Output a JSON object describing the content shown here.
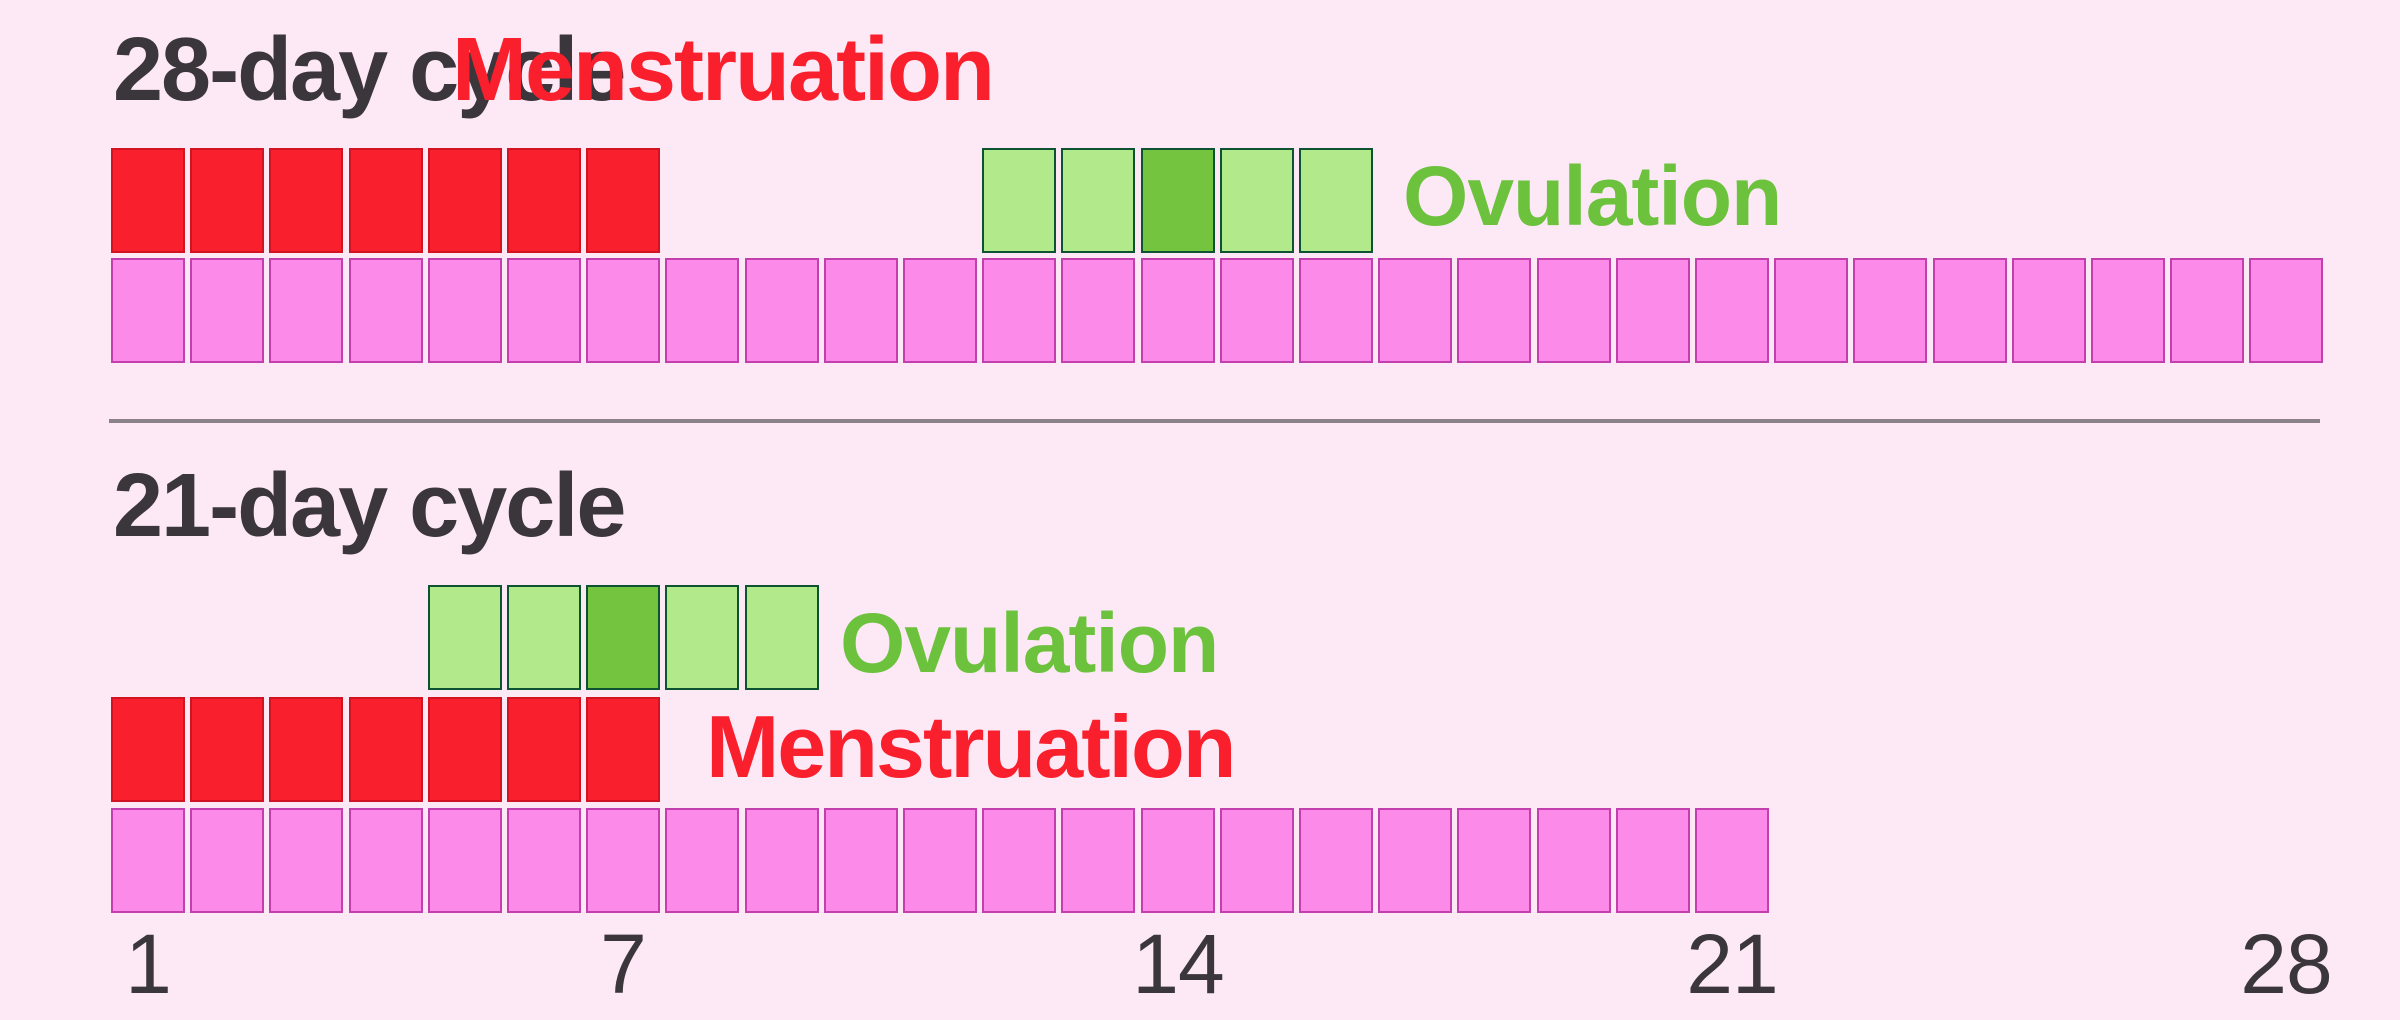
{
  "colors": {
    "background": "#fde9f6",
    "text": "#3a363b",
    "divider": "#8b8289",
    "red-fill": "#fa1f2d",
    "red-border": "#d11322",
    "pink-fill": "#fb8ae9",
    "pink-border": "#c43fae",
    "green-fill": "#b2e98a",
    "green-peak-fill": "#75c43f",
    "green-border": "#0d5231",
    "label-red": "#fa1f2d",
    "label-green": "#6cc23d"
  },
  "chart_data": {
    "type": "bar",
    "description": "Comparison of menstruation and ovulation timing in a 28-day and a 21-day menstrual cycle; one square per cycle day",
    "x_ticks": [
      1,
      7,
      14,
      21,
      28
    ],
    "legend": {
      "menstruation": "Menstruation",
      "ovulation": "Ovulation"
    },
    "series": [
      {
        "name": "28-day cycle",
        "total_days": 28,
        "menstruation_days": {
          "start": 1,
          "end": 7
        },
        "ovulation_days": {
          "start": 12,
          "end": 16,
          "peak": 14
        }
      },
      {
        "name": "21-day cycle",
        "total_days": 21,
        "menstruation_days": {
          "start": 1,
          "end": 7
        },
        "ovulation_days": {
          "start": 5,
          "end": 9,
          "peak": 7
        }
      }
    ]
  }
}
